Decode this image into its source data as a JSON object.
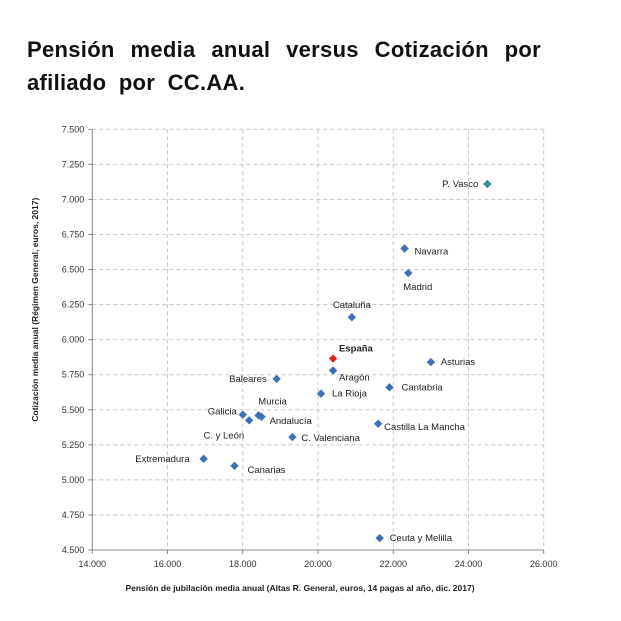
{
  "title": "Pensión media anual versus Cotización por afiliado por CC.AA.",
  "chart_data": {
    "type": "scatter",
    "title": "Pensión media anual versus Cotización por afiliado por CC.AA.",
    "xlabel": "Pensión de jubilación media anual (Altas R. General, euros, 14 pagas al año, dic. 2017)",
    "ylabel": "Cotización media anual (Régimen General, euros, 2017)",
    "xlim": [
      14000,
      26000
    ],
    "ylim": [
      4500,
      7500
    ],
    "x_ticks": [
      "14.000",
      "16.000",
      "18.000",
      "20.000",
      "22.000",
      "24.000",
      "26.000"
    ],
    "y_ticks": [
      "4.500",
      "4.750",
      "5.000",
      "5.250",
      "5.500",
      "5.750",
      "6.000",
      "6.250",
      "6.500",
      "6.750",
      "7.000",
      "7.250",
      "7.500"
    ],
    "grid": true,
    "colors": {
      "default": "#3f6fb5",
      "highlight": "#e8221c",
      "pvasco": "#3a8c9e"
    },
    "points": [
      {
        "label": "P. Vasco",
        "x": 24500,
        "y": 7110
      },
      {
        "label": "Navarra",
        "x": 22300,
        "y": 6650
      },
      {
        "label": "Madrid",
        "x": 22400,
        "y": 6475
      },
      {
        "label": "Cataluña",
        "x": 20900,
        "y": 6160
      },
      {
        "label": "España",
        "x": 20400,
        "y": 5865,
        "highlight": true
      },
      {
        "label": "Asturias",
        "x": 23000,
        "y": 5840
      },
      {
        "label": "Aragón",
        "x": 20400,
        "y": 5780
      },
      {
        "label": "Baleares",
        "x": 18900,
        "y": 5720
      },
      {
        "label": "Cantabria",
        "x": 21900,
        "y": 5660
      },
      {
        "label": "La Rioja",
        "x": 20080,
        "y": 5615
      },
      {
        "label": "Galicia",
        "x": 18000,
        "y": 5465
      },
      {
        "label": "Murcia",
        "x": 18420,
        "y": 5460
      },
      {
        "label": "Andalucía",
        "x": 18500,
        "y": 5450
      },
      {
        "label": "C. y León",
        "x": 18170,
        "y": 5425
      },
      {
        "label": "Castilla La Mancha",
        "x": 21600,
        "y": 5400
      },
      {
        "label": "C. Valenciana",
        "x": 19320,
        "y": 5305
      },
      {
        "label": "Extremadura",
        "x": 16960,
        "y": 5150
      },
      {
        "label": "Canarias",
        "x": 17780,
        "y": 5100
      },
      {
        "label": "Ceuta y Melilla",
        "x": 21640,
        "y": 4585
      }
    ]
  }
}
